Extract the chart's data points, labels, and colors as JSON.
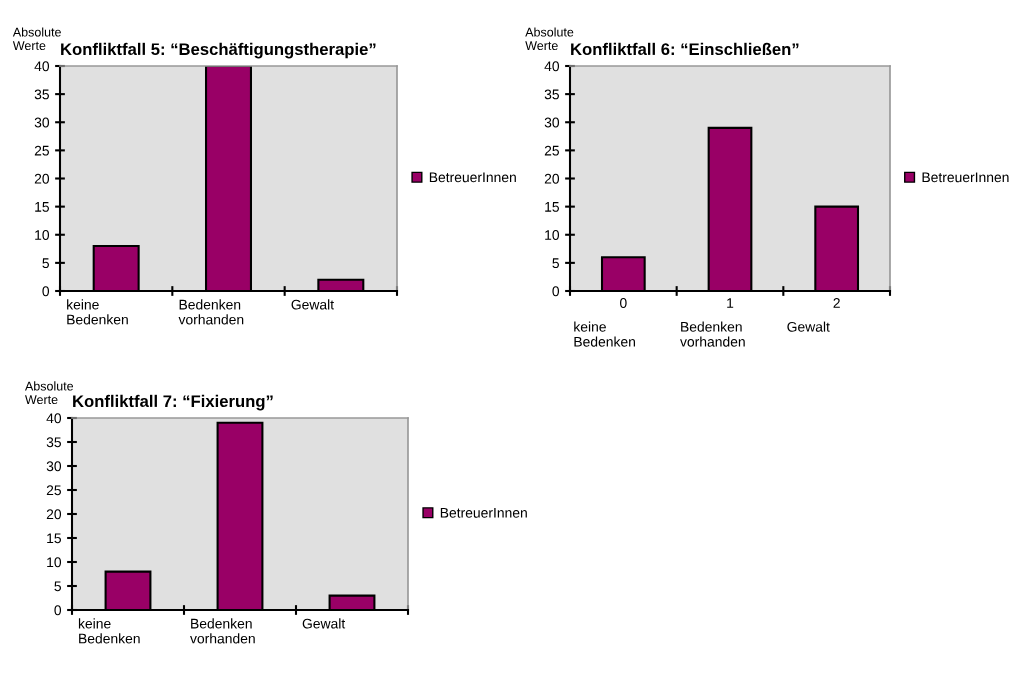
{
  "chart_data": [
    {
      "type": "bar",
      "title": "Konfliktfall 5: “Beschäftigungstherapie”",
      "ylabel": "Absolute\nWerte",
      "categories": [
        "keine\nBedenken",
        "Bedenken\nvorhanden",
        "Gewalt"
      ],
      "series": [
        {
          "name": "BetreuerInnen",
          "color": "#990066",
          "values": [
            8,
            40,
            2
          ]
        }
      ],
      "ylim": [
        0,
        40
      ],
      "yticks": [
        0,
        5,
        10,
        15,
        20,
        25,
        30,
        35,
        40
      ],
      "grid": false,
      "legend": "right"
    },
    {
      "type": "bar",
      "title": "Konfliktfall 6: “Einschließen”",
      "ylabel": "Absolute\nWerte",
      "categories": [
        "keine\nBedenken",
        "Bedenken\nvorhanden",
        "Gewalt"
      ],
      "series": [
        {
          "name": "BetreuerInnen",
          "color": "#990066",
          "values": [
            6,
            29,
            15
          ]
        }
      ],
      "ylim": [
        0,
        40
      ],
      "yticks": [
        0,
        5,
        10,
        15,
        20,
        25,
        30,
        35,
        40
      ],
      "grid": false,
      "legend": "right",
      "annotations": [
        "0",
        "1",
        "2"
      ]
    },
    {
      "type": "bar",
      "title": "Konfliktfall 7: “Fixierung”",
      "ylabel": "Absolute\nWerte",
      "categories": [
        "keine\nBedenken",
        "Bedenken\nvorhanden",
        "Gewalt"
      ],
      "series": [
        {
          "name": "BetreuerInnen",
          "color": "#990066",
          "values": [
            8,
            39,
            3
          ]
        }
      ],
      "ylim": [
        0,
        40
      ],
      "yticks": [
        0,
        5,
        10,
        15,
        20,
        25,
        30,
        35,
        40
      ],
      "grid": false,
      "legend": "right"
    }
  ]
}
